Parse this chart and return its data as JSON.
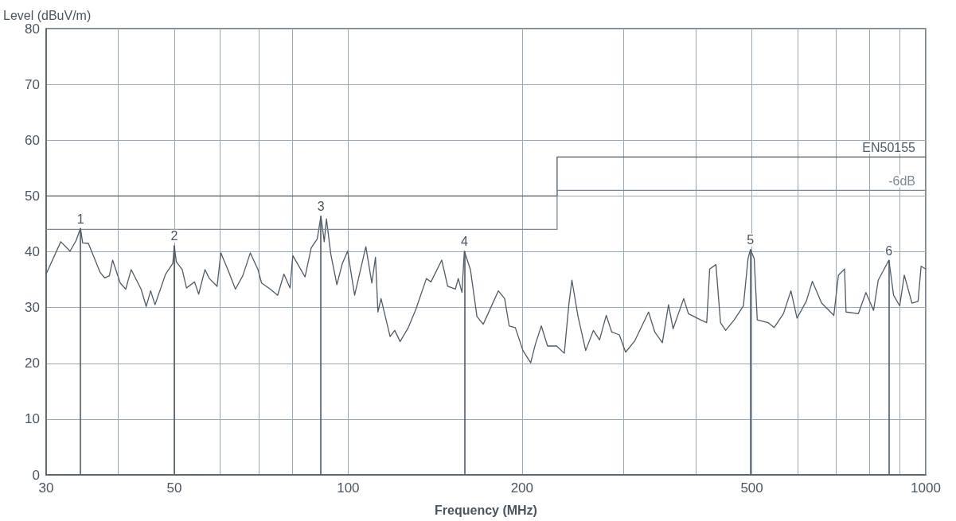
{
  "chart_data": {
    "type": "line",
    "xlabel": "Frequency (MHz)",
    "ylabel": "Level (dBuV/m)",
    "log": "x",
    "grid": true,
    "legend": false,
    "marker": "none",
    "line_style": "solid",
    "xlim": [
      30,
      1000
    ],
    "ylim": [
      0,
      80
    ],
    "xticks": [
      30,
      {
        "value": 40,
        "label": null
      },
      50,
      {
        "value": 60,
        "label": null
      },
      {
        "value": 70,
        "label": null
      },
      {
        "value": 80,
        "label": null
      },
      100,
      200,
      {
        "value": 300,
        "label": null
      },
      {
        "value": 400,
        "label": null
      },
      500,
      {
        "value": 600,
        "label": null
      },
      {
        "value": 700,
        "label": null
      },
      {
        "value": 800,
        "label": null
      },
      {
        "value": 900,
        "label": null
      },
      1000
    ],
    "yticks": [
      0,
      10,
      20,
      30,
      40,
      50,
      60,
      70,
      80
    ],
    "series": [
      {
        "color": "#4f5b66",
        "x": [
          30,
          31.8,
          33.0,
          33.8,
          34.4,
          34.7,
          35.5,
          37.2,
          37.9,
          38.6,
          39.1,
          40.3,
          41.2,
          42.1,
          43.8,
          44.7,
          45.5,
          46.3,
          48.3,
          49.7,
          50.0,
          50.4,
          51.6,
          52.5,
          54.2,
          55.1,
          56.5,
          57.5,
          59.3,
          60.2,
          61.9,
          63.8,
          65.7,
          67.7,
          69.8,
          70.8,
          73.3,
          75.5,
          77.4,
          79.3,
          80.2,
          84.2,
          86.3,
          88.4,
          89.7,
          90.9,
          91.7,
          93.3,
          95.6,
          97.7,
          99.8,
          102.6,
          107.3,
          109.9,
          111.5,
          112.6,
          114.0,
          118.2,
          120.4,
          123.0,
          127.1,
          131.0,
          136.6,
          139.1,
          145.2,
          148.7,
          153.3,
          155.1,
          157.4,
          158.9,
          162.8,
          167.1,
          171.3,
          176.6,
          182.0,
          186.6,
          190.0,
          194.7,
          200.7,
          207.0,
          210.9,
          216.0,
          221.4,
          229.6,
          236.7,
          241.0,
          244.0,
          250.0,
          257.8,
          265.8,
          272.4,
          279.8,
          286.0,
          294.8,
          302.2,
          313.4,
          331.2,
          339.5,
          349.9,
          358.6,
          365.2,
          381.0,
          388.2,
          407.6,
          417.6,
          422.6,
          433.2,
          441.2,
          450.4,
          466.0,
          483.4,
          492.4,
          497.2,
          504.6,
          510.8,
          533.2,
          546.4,
          567.0,
          584.2,
          598.6,
          621.0,
          636.4,
          660.2,
          693.2,
          706.0,
          723.4,
          727.8,
          764.4,
          787.8,
          812.2,
          827.4,
          863.4,
          879.6,
          901.4,
          918.0,
          946.4,
          969.8,
          981.6,
          1000
        ],
        "values": [
          36.0,
          41.8,
          40.1,
          42.0,
          44.2,
          41.6,
          41.5,
          36.3,
          35.3,
          35.7,
          38.5,
          34.4,
          33.3,
          36.8,
          33.3,
          30.2,
          33.0,
          30.5,
          36.0,
          37.9,
          41.1,
          38.2,
          36.8,
          33.5,
          34.6,
          32.4,
          36.8,
          35.2,
          33.8,
          39.8,
          36.8,
          33.3,
          35.7,
          39.8,
          36.8,
          34.4,
          33.3,
          32.2,
          36.0,
          33.5,
          39.3,
          35.5,
          40.7,
          42.3,
          46.4,
          41.8,
          45.9,
          39.6,
          34.1,
          37.9,
          40.1,
          32.2,
          40.9,
          34.4,
          39.0,
          29.2,
          31.6,
          24.8,
          25.9,
          23.9,
          26.4,
          29.7,
          35.2,
          34.6,
          38.5,
          33.8,
          33.3,
          35.2,
          32.7,
          40.1,
          36.8,
          28.4,
          27.0,
          30.0,
          33.0,
          31.6,
          26.7,
          26.4,
          22.3,
          20.1,
          23.4,
          26.7,
          23.1,
          23.1,
          21.8,
          30.5,
          34.9,
          28.4,
          22.3,
          25.9,
          24.2,
          28.6,
          25.6,
          25.1,
          22.0,
          24.0,
          29.2,
          25.6,
          23.7,
          30.5,
          26.2,
          31.6,
          28.9,
          27.8,
          27.3,
          36.9,
          37.7,
          27.3,
          25.9,
          27.8,
          30.3,
          38.8,
          40.4,
          38.8,
          27.8,
          27.3,
          26.4,
          28.9,
          33.0,
          28.1,
          31.1,
          34.7,
          30.8,
          28.6,
          35.8,
          36.9,
          29.2,
          28.9,
          32.7,
          29.5,
          34.9,
          38.5,
          32.2,
          30.3,
          35.8,
          30.8,
          31.1,
          37.4,
          36.9
        ]
      },
      {
        "name": "EN50155",
        "color": "#4f5a63",
        "type": "step",
        "x": [
          30,
          230,
          1000
        ],
        "values": [
          50,
          57,
          57
        ]
      },
      {
        "name": "-6dB",
        "color": "#7d8a95",
        "type": "step",
        "x": [
          30,
          230,
          1000
        ],
        "values": [
          44,
          51,
          51
        ]
      }
    ],
    "annotations": [
      {
        "text": "1",
        "x": 34.4,
        "y": 44.2
      },
      {
        "text": "2",
        "x": 50.0,
        "y": 41.1
      },
      {
        "text": "3",
        "x": 89.7,
        "y": 46.4
      },
      {
        "text": "4",
        "x": 158.9,
        "y": 40.1
      },
      {
        "text": "5",
        "x": 497.2,
        "y": 40.4
      },
      {
        "text": "6",
        "x": 863.4,
        "y": 38.5
      }
    ]
  }
}
